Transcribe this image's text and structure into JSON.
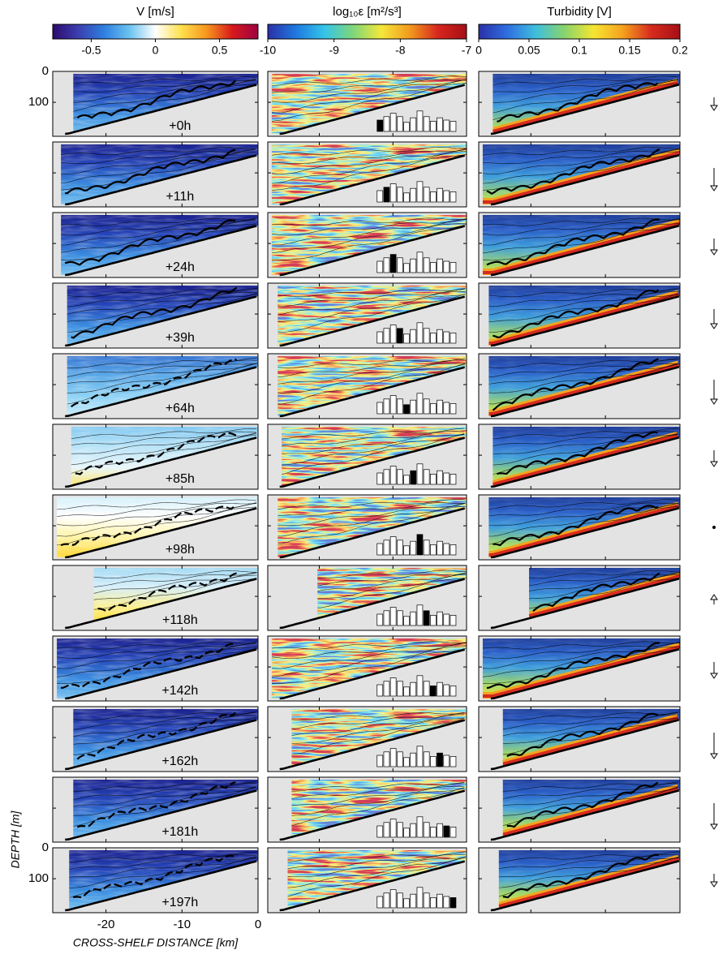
{
  "colorbars": [
    {
      "title": "V [m/s]",
      "lim": [
        -0.8,
        0.8
      ],
      "ticks": [
        -0.5,
        0,
        0.5
      ],
      "colors": [
        "#2d0a6b",
        "#3b3fb0",
        "#2f7fe0",
        "#6cc3f0",
        "#ffffff",
        "#ffe14d",
        "#f7961e",
        "#d7191c",
        "#9e0142"
      ]
    },
    {
      "title": "log₁₀ε [m²/s³]",
      "lim": [
        -10,
        -7
      ],
      "ticks": [
        -10,
        -9,
        -8,
        -7
      ],
      "colors": [
        "#2b2fa8",
        "#1f7ae0",
        "#35c4e8",
        "#7fd67a",
        "#f3e83a",
        "#f39a1e",
        "#d7261e",
        "#a50f15"
      ]
    },
    {
      "title": "Turbidity [V]",
      "lim": [
        0,
        0.2
      ],
      "ticks": [
        0,
        0.05,
        0.1,
        0.15,
        0.2
      ],
      "colors": [
        "#2b2fa8",
        "#2f6fe0",
        "#3fbfdc",
        "#8ad46a",
        "#f6e532",
        "#f5a21e",
        "#d62b1f",
        "#a50f15"
      ]
    }
  ],
  "x_axis": {
    "label": "CROSS-SHELF DISTANCE [km]",
    "lim": [
      -27,
      0
    ],
    "ticks": [
      -20,
      -10,
      0
    ]
  },
  "y_axis": {
    "label": "DEPTH [m]",
    "lim": [
      0,
      210
    ],
    "ticks": [
      0,
      100
    ]
  },
  "bar_heights": [
    0.5,
    0.65,
    0.8,
    0.65,
    0.4,
    0.6,
    0.9,
    0.65,
    0.45,
    0.6,
    0.5,
    0.45
  ],
  "panels": [
    {
      "time": "+0h",
      "highlight": 0,
      "arrow": -0.4
    },
    {
      "time": "+11h",
      "highlight": 1,
      "arrow": -0.7
    },
    {
      "time": "+24h",
      "highlight": 2,
      "arrow": -0.5
    },
    {
      "time": "+39h",
      "highlight": 3,
      "arrow": -0.6
    },
    {
      "time": "+64h",
      "highlight": 4,
      "arrow": -0.75
    },
    {
      "time": "+85h",
      "highlight": 5,
      "arrow": -0.5
    },
    {
      "time": "+98h",
      "highlight": 6,
      "arrow": 0
    },
    {
      "time": "+118h",
      "highlight": 7,
      "arrow": 0.3
    },
    {
      "time": "+142h",
      "highlight": 8,
      "arrow": -0.5
    },
    {
      "time": "+162h",
      "highlight": 9,
      "arrow": -0.8
    },
    {
      "time": "+181h",
      "highlight": 10,
      "arrow": -0.8
    },
    {
      "time": "+197h",
      "highlight": 11,
      "arrow": -0.4
    }
  ]
}
